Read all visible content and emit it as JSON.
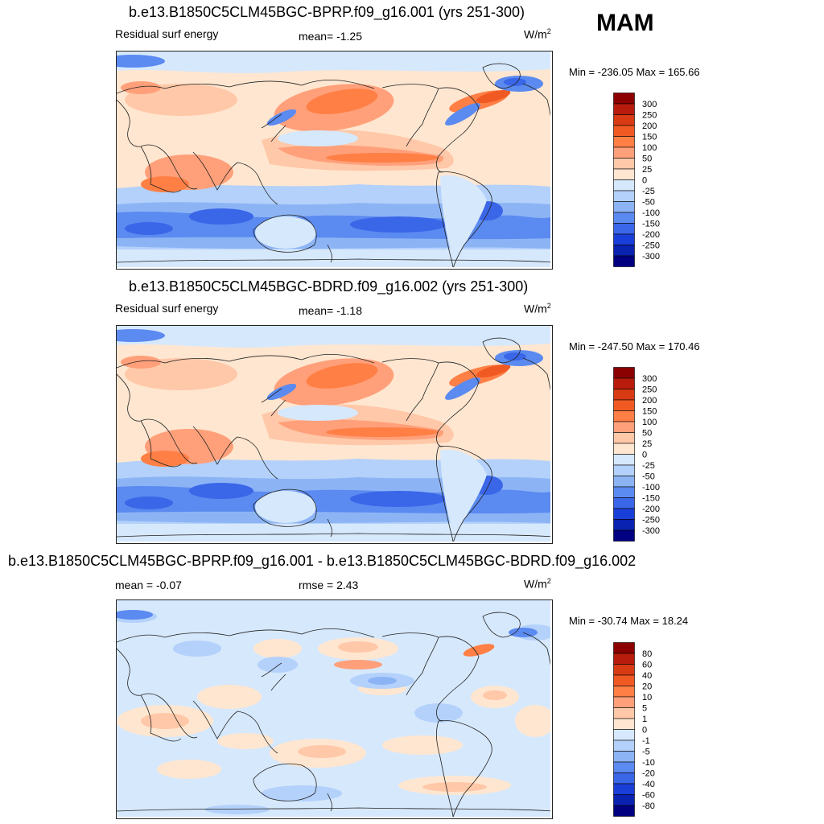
{
  "season": "MAM",
  "panels": [
    {
      "title": "b.e13.B1850C5CLM45BGC-BPRP.f09_g16.001 (yrs 251-300)",
      "left_label": "Residual surf energy",
      "mid_label": "mean=  -1.25",
      "units_base": "W/m",
      "units_exp": "2",
      "minmax": "Min = -236.05 Max = 165.66"
    },
    {
      "title": "b.e13.B1850C5CLM45BGC-BDRD.f09_g16.002 (yrs 251-300)",
      "left_label": "Residual surf energy",
      "mid_label": "mean=  -1.18",
      "units_base": "W/m",
      "units_exp": "2",
      "minmax": "Min = -247.50 Max = 170.46"
    },
    {
      "title": "b.e13.B1850C5CLM45BGC-BPRP.f09_g16.001 - b.e13.B1850C5CLM45BGC-BDRD.f09_g16.002",
      "left_label": "mean =  -0.07",
      "mid_label": "rmse =   2.43",
      "units_base": "W/m",
      "units_exp": "2",
      "minmax": "Min = -30.74 Max =  18.24"
    }
  ],
  "chart_data": [
    {
      "type": "heatmap",
      "title": "b.e13.B1850C5CLM45BGC-BPRP.f09_g16.001 (yrs 251-300)",
      "variable": "Residual surf energy",
      "units": "W/m2",
      "mean": -1.25,
      "min": -236.05,
      "max": 165.66,
      "colorbar_levels": [
        300,
        250,
        200,
        150,
        100,
        50,
        25,
        0,
        -25,
        -50,
        -100,
        -150,
        -200,
        -250,
        -300
      ],
      "colorbar_colors": [
        "#8b0000",
        "#b81c0c",
        "#d83a14",
        "#f05a22",
        "#ff7f45",
        "#ffa07a",
        "#ffc8a8",
        "#ffe6d0",
        "#d6e8fc",
        "#b3d1fa",
        "#8cb4f5",
        "#5b8af0",
        "#3a66e8",
        "#1a3fd8",
        "#0a22b0",
        "#000080"
      ]
    },
    {
      "type": "heatmap",
      "title": "b.e13.B1850C5CLM45BGC-BDRD.f09_g16.002 (yrs 251-300)",
      "variable": "Residual surf energy",
      "units": "W/m2",
      "mean": -1.18,
      "min": -247.5,
      "max": 170.46,
      "colorbar_levels": [
        300,
        250,
        200,
        150,
        100,
        50,
        25,
        0,
        -25,
        -50,
        -100,
        -150,
        -200,
        -250,
        -300
      ],
      "colorbar_colors": [
        "#8b0000",
        "#b81c0c",
        "#d83a14",
        "#f05a22",
        "#ff7f45",
        "#ffa07a",
        "#ffc8a8",
        "#ffe6d0",
        "#d6e8fc",
        "#b3d1fa",
        "#8cb4f5",
        "#5b8af0",
        "#3a66e8",
        "#1a3fd8",
        "#0a22b0",
        "#000080"
      ]
    },
    {
      "type": "heatmap",
      "title": "b.e13.B1850C5CLM45BGC-BPRP.f09_g16.001 - b.e13.B1850C5CLM45BGC-BDRD.f09_g16.002",
      "units": "W/m2",
      "mean": -0.07,
      "rmse": 2.43,
      "min": -30.74,
      "max": 18.24,
      "colorbar_levels": [
        80,
        60,
        40,
        20,
        10,
        5,
        1,
        0,
        -1,
        -5,
        -10,
        -20,
        -40,
        -60,
        -80
      ],
      "colorbar_colors": [
        "#8b0000",
        "#b81c0c",
        "#d83a14",
        "#f05a22",
        "#ff7f45",
        "#ffa07a",
        "#ffc8a8",
        "#ffe6d0",
        "#d6e8fc",
        "#b3d1fa",
        "#8cb4f5",
        "#5b8af0",
        "#3a66e8",
        "#1a3fd8",
        "#0a22b0",
        "#000080"
      ]
    }
  ]
}
